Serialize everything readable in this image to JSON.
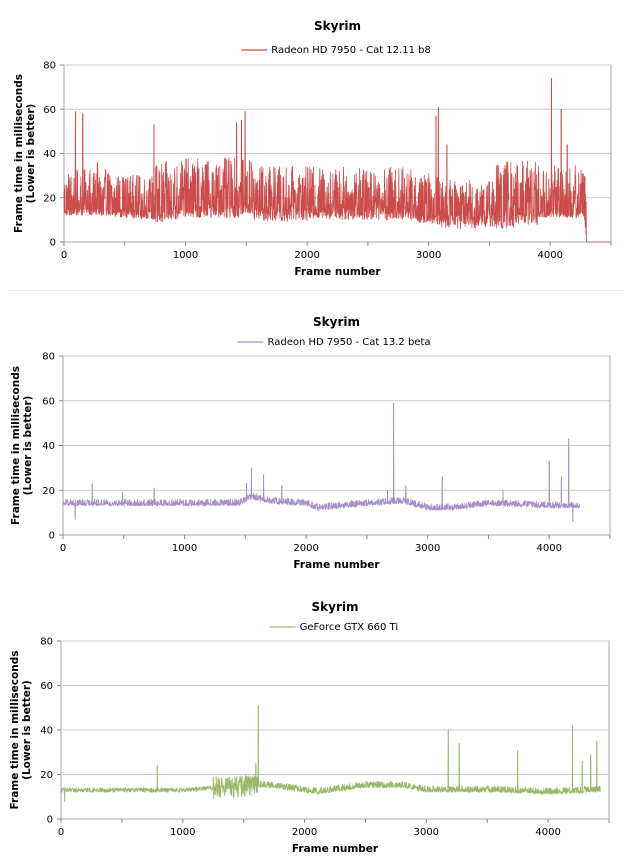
{
  "chart_data": [
    {
      "type": "line",
      "title": "Skyrim",
      "xlabel": "Frame number",
      "ylabel_lines": [
        "Frame time in milliseconds",
        "(Lower is better)"
      ],
      "xlim": [
        0,
        4500
      ],
      "ylim": [
        0,
        80
      ],
      "xticks": [
        0,
        1000,
        2000,
        3000,
        4000
      ],
      "yticks": [
        0,
        20,
        40,
        60,
        80
      ],
      "grid": true,
      "legend_position": "top-center",
      "color": "#cc4b4b",
      "frames": 4300,
      "series": [
        {
          "name": "Radeon HD 7950 - Cat 12.11 b8",
          "baseline": [
            [
              0,
              15
            ],
            [
              400,
              15
            ],
            [
              800,
              14
            ],
            [
              1000,
              16
            ],
            [
              1450,
              16
            ],
            [
              1500,
              17
            ],
            [
              2000,
              16
            ],
            [
              2400,
              16
            ],
            [
              2800,
              16
            ],
            [
              2900,
              12
            ],
            [
              3300,
              12
            ],
            [
              3900,
              14
            ],
            [
              4280,
              14
            ],
            [
              4300,
              0
            ],
            [
              4500,
              0
            ]
          ],
          "noise_band": [
            [
              0,
              400,
              3,
              18
            ],
            [
              400,
              750,
              4,
              16
            ],
            [
              750,
              1450,
              5,
              22
            ],
            [
              1450,
              1550,
              4,
              21
            ],
            [
              1550,
              2000,
              7,
              18
            ],
            [
              2000,
              2400,
              6,
              18
            ],
            [
              2400,
              2800,
              6,
              18
            ],
            [
              2800,
              3100,
              4,
              19
            ],
            [
              3100,
              3550,
              6,
              16
            ],
            [
              3550,
              3900,
              7,
              24
            ],
            [
              3900,
              4300,
              3,
              21
            ]
          ],
          "spikes": [
            [
              95,
              59
            ],
            [
              155,
              58
            ],
            [
              275,
              36
            ],
            [
              740,
              53
            ],
            [
              1420,
              54
            ],
            [
              1460,
              55
            ],
            [
              1490,
              59
            ],
            [
              1540,
              36
            ],
            [
              3060,
              57
            ],
            [
              3080,
              61
            ],
            [
              3150,
              44
            ],
            [
              3400,
              24
            ],
            [
              3500,
              27
            ],
            [
              4010,
              74
            ],
            [
              4090,
              60
            ],
            [
              4140,
              44
            ]
          ]
        }
      ]
    },
    {
      "type": "line",
      "title": "Skyrim",
      "xlabel": "Frame number",
      "ylabel_lines": [
        "Frame time in milliseconds",
        "(Lower is better)"
      ],
      "xlim": [
        0,
        4500
      ],
      "ylim": [
        0,
        80
      ],
      "xticks": [
        0,
        1000,
        2000,
        3000,
        4000
      ],
      "yticks": [
        0,
        20,
        40,
        60,
        80
      ],
      "grid": true,
      "legend_position": "top-center",
      "color": "#a591c7",
      "frames": 4250,
      "series": [
        {
          "name": "Radeon HD 7950 - Cat 13.2 beta",
          "baseline": [
            [
              0,
              14
            ],
            [
              500,
              14
            ],
            [
              1000,
              14
            ],
            [
              1450,
              14
            ],
            [
              1550,
              17
            ],
            [
              1700,
              15
            ],
            [
              2000,
              14
            ],
            [
              2100,
              12
            ],
            [
              2500,
              14
            ],
            [
              2800,
              15
            ],
            [
              3000,
              12
            ],
            [
              3200,
              12
            ],
            [
              3500,
              14
            ],
            [
              4000,
              13
            ],
            [
              4250,
              13
            ]
          ],
          "noise_band": [
            [
              0,
              4250,
              1,
              2
            ]
          ],
          "spikes": [
            [
              100,
              7
            ],
            [
              240,
              23
            ],
            [
              490,
              19
            ],
            [
              750,
              21
            ],
            [
              1510,
              23
            ],
            [
              1550,
              30
            ],
            [
              1650,
              27
            ],
            [
              1800,
              22
            ],
            [
              2670,
              20
            ],
            [
              2720,
              59
            ],
            [
              2820,
              22
            ],
            [
              3120,
              26
            ],
            [
              3620,
              20
            ],
            [
              4000,
              33
            ],
            [
              4100,
              26
            ],
            [
              4160,
              43
            ],
            [
              4195,
              6
            ]
          ]
        }
      ]
    },
    {
      "type": "line",
      "title": "Skyrim",
      "xlabel": "Frame number",
      "ylabel_lines": [
        "Frame time in milliseconds",
        "(Lower is better)"
      ],
      "xlim": [
        0,
        4500
      ],
      "ylim": [
        0,
        80
      ],
      "xticks": [
        0,
        1000,
        2000,
        3000,
        4000
      ],
      "yticks": [
        0,
        20,
        40,
        60,
        80
      ],
      "grid": true,
      "legend_position": "top-center",
      "color": "#9bb86a",
      "frames": 4430,
      "series": [
        {
          "name": "GeForce GTX 660 Ti",
          "baseline": [
            [
              0,
              13
            ],
            [
              500,
              13
            ],
            [
              800,
              13
            ],
            [
              1000,
              13
            ],
            [
              1250,
              14
            ],
            [
              1550,
              15
            ],
            [
              1700,
              15
            ],
            [
              2000,
              13
            ],
            [
              2100,
              12
            ],
            [
              2500,
              15
            ],
            [
              2800,
              15
            ],
            [
              3000,
              13
            ],
            [
              3100,
              13
            ],
            [
              3500,
              13
            ],
            [
              4000,
              12
            ],
            [
              4430,
              13
            ]
          ],
          "noise_band": [
            [
              0,
              1250,
              1,
              1
            ],
            [
              1250,
              1620,
              5,
              5
            ],
            [
              1620,
              4430,
              1,
              2
            ]
          ],
          "spikes": [
            [
              30,
              8
            ],
            [
              790,
              24
            ],
            [
              1620,
              51
            ],
            [
              1600,
              25
            ],
            [
              3180,
              40
            ],
            [
              3270,
              34
            ],
            [
              3750,
              31
            ],
            [
              4200,
              42
            ],
            [
              4280,
              26
            ],
            [
              4350,
              29
            ],
            [
              4400,
              35
            ]
          ]
        }
      ]
    }
  ]
}
